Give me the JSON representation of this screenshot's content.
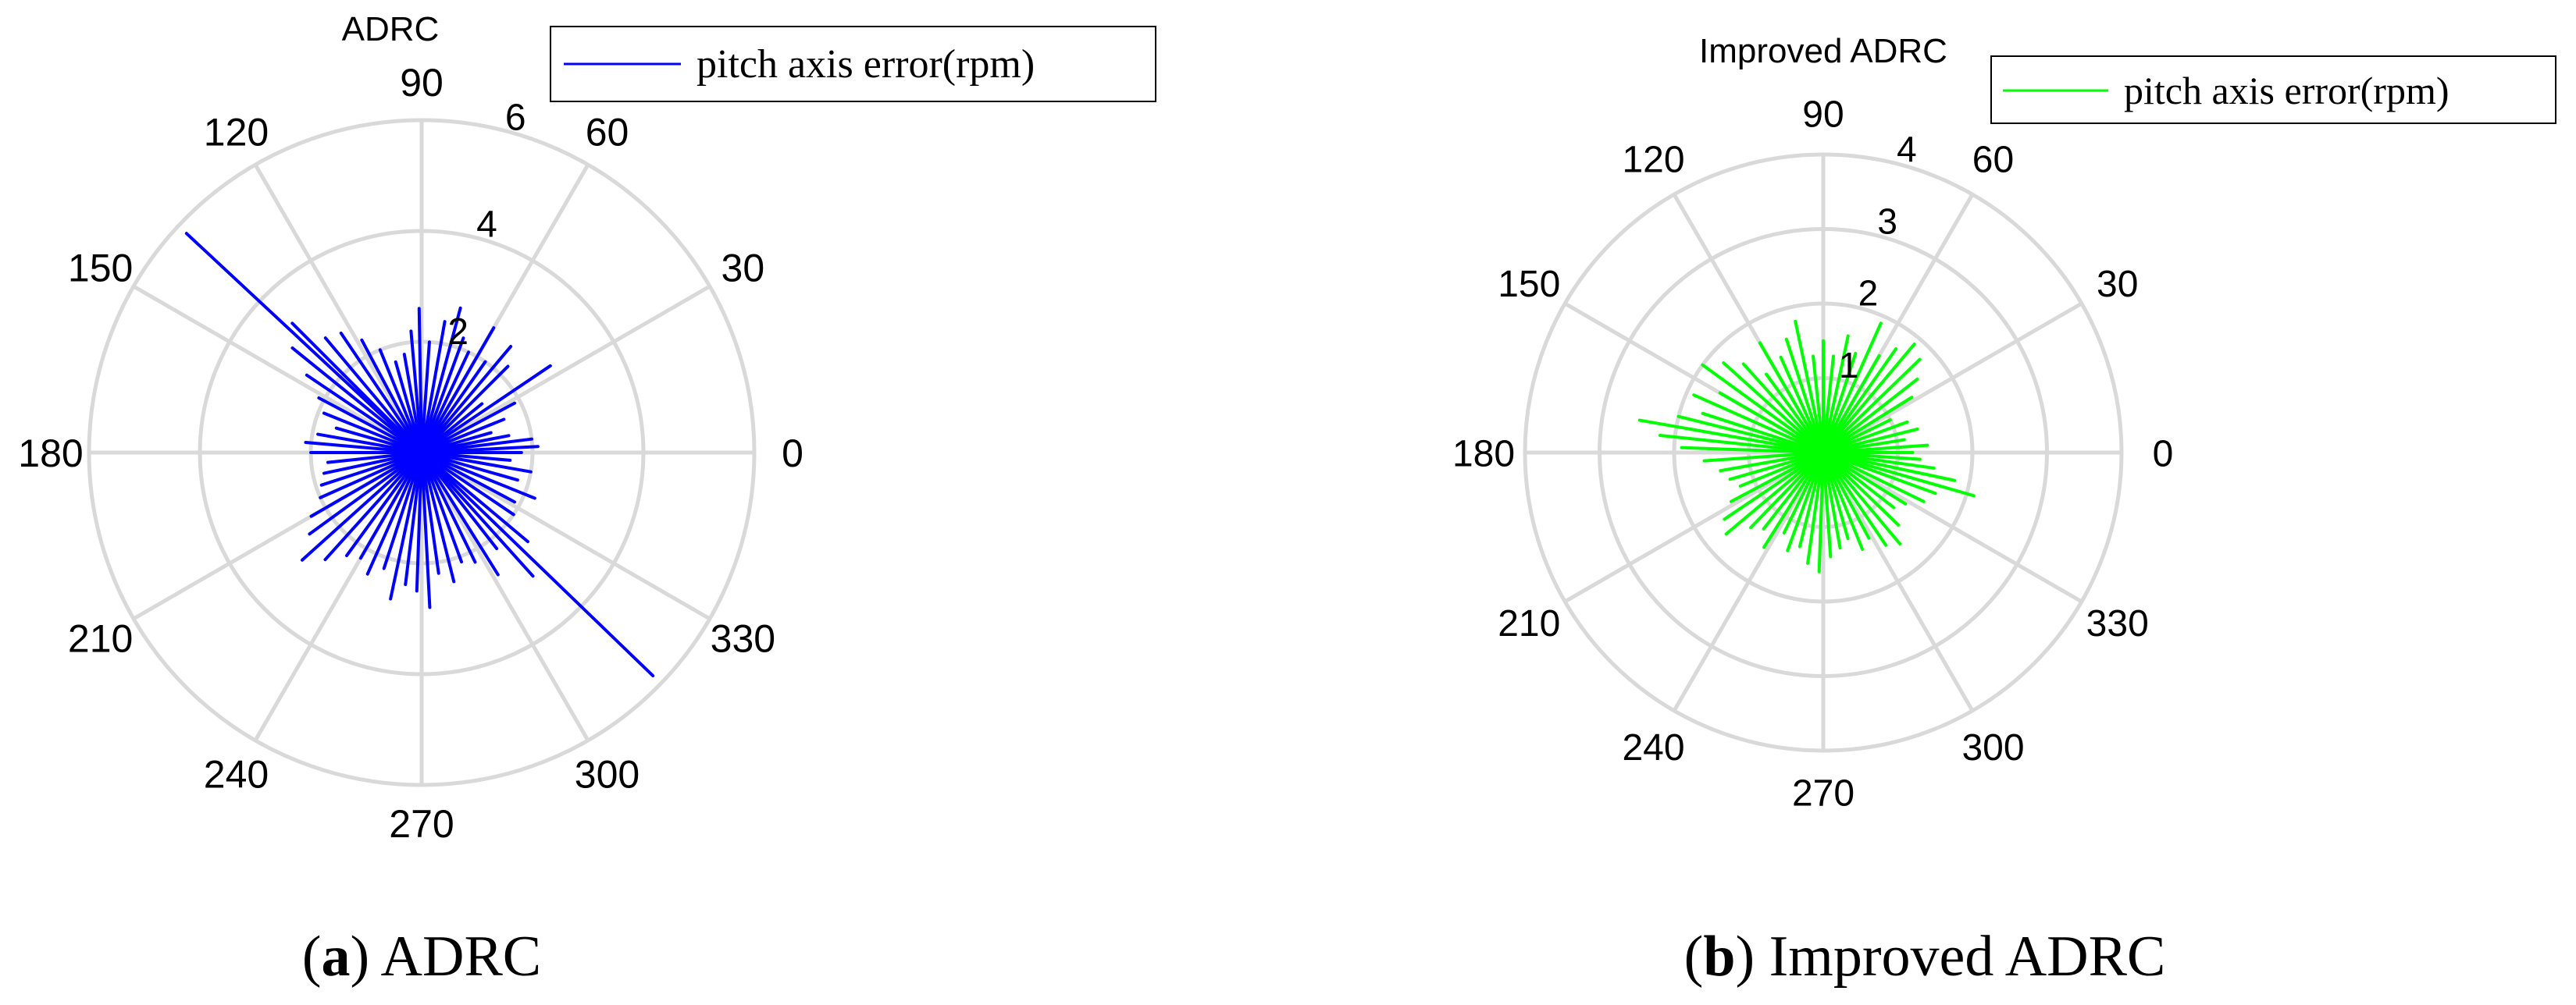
{
  "figure": {
    "panels": [
      {
        "caption_letter": "a",
        "caption_text": " ADRC"
      },
      {
        "caption_letter": "b",
        "caption_text": " Improved ADRC"
      }
    ]
  },
  "chart_data": [
    {
      "type": "polar",
      "title": "ADRC",
      "legend": {
        "label": "pitch axis error(rpm)",
        "position": "top-right",
        "color": "#0000FF"
      },
      "series": [
        {
          "name": "pitch axis error(rpm)",
          "color": "#0000FF",
          "style": "radial-spikes",
          "points": [
            {
              "theta": 0,
              "r": 1.8
            },
            {
              "theta": 3,
              "r": 2.1
            },
            {
              "theta": 7,
              "r": 2.0
            },
            {
              "theta": 11,
              "r": 1.6
            },
            {
              "theta": 16,
              "r": 1.3
            },
            {
              "theta": 22,
              "r": 1.6
            },
            {
              "theta": 28,
              "r": 1.9
            },
            {
              "theta": 34,
              "r": 2.8
            },
            {
              "theta": 39,
              "r": 1.4
            },
            {
              "theta": 45,
              "r": 2.2
            },
            {
              "theta": 50,
              "r": 2.5
            },
            {
              "theta": 55,
              "r": 2.0
            },
            {
              "theta": 60,
              "r": 2.6
            },
            {
              "theta": 65,
              "r": 2.0
            },
            {
              "theta": 70,
              "r": 2.2
            },
            {
              "theta": 75,
              "r": 2.7
            },
            {
              "theta": 80,
              "r": 2.4
            },
            {
              "theta": 86,
              "r": 2.0
            },
            {
              "theta": 91,
              "r": 2.6
            },
            {
              "theta": 95,
              "r": 2.2
            },
            {
              "theta": 100,
              "r": 1.8
            },
            {
              "theta": 106,
              "r": 1.7
            },
            {
              "theta": 112,
              "r": 2.0
            },
            {
              "theta": 118,
              "r": 2.3
            },
            {
              "theta": 124,
              "r": 2.6
            },
            {
              "theta": 130,
              "r": 2.7
            },
            {
              "theta": 135,
              "r": 3.3
            },
            {
              "theta": 137,
              "r": 5.8
            },
            {
              "theta": 141,
              "r": 3.0
            },
            {
              "theta": 146,
              "r": 2.5
            },
            {
              "theta": 152,
              "r": 2.1
            },
            {
              "theta": 158,
              "r": 1.9
            },
            {
              "theta": 164,
              "r": 1.6
            },
            {
              "theta": 170,
              "r": 1.9
            },
            {
              "theta": 175,
              "r": 2.1
            },
            {
              "theta": 180,
              "r": 2.0
            },
            {
              "theta": 186,
              "r": 1.7
            },
            {
              "theta": 192,
              "r": 1.8
            },
            {
              "theta": 198,
              "r": 1.9
            },
            {
              "theta": 204,
              "r": 2.0
            },
            {
              "theta": 210,
              "r": 2.3
            },
            {
              "theta": 216,
              "r": 2.5
            },
            {
              "theta": 222,
              "r": 2.9
            },
            {
              "theta": 228,
              "r": 2.6
            },
            {
              "theta": 234,
              "r": 2.3
            },
            {
              "theta": 240,
              "r": 2.2
            },
            {
              "theta": 246,
              "r": 2.4
            },
            {
              "theta": 252,
              "r": 2.2
            },
            {
              "theta": 258,
              "r": 2.7
            },
            {
              "theta": 263,
              "r": 2.4
            },
            {
              "theta": 268,
              "r": 2.5
            },
            {
              "theta": 273,
              "r": 2.8
            },
            {
              "theta": 278,
              "r": 2.2
            },
            {
              "theta": 284,
              "r": 2.4
            },
            {
              "theta": 290,
              "r": 2.1
            },
            {
              "theta": 296,
              "r": 2.2
            },
            {
              "theta": 302,
              "r": 2.6
            },
            {
              "theta": 308,
              "r": 2.2
            },
            {
              "theta": 312,
              "r": 3.0
            },
            {
              "theta": 316,
              "r": 5.8
            },
            {
              "theta": 320,
              "r": 2.5
            },
            {
              "theta": 326,
              "r": 2.0
            },
            {
              "theta": 332,
              "r": 1.9
            },
            {
              "theta": 338,
              "r": 2.2
            },
            {
              "theta": 344,
              "r": 1.8
            },
            {
              "theta": 350,
              "r": 2.0
            },
            {
              "theta": 355,
              "r": 1.6
            }
          ]
        }
      ],
      "r_axis": {
        "range": [
          0,
          6
        ],
        "rings": [
          2,
          4,
          6
        ],
        "tick_labels": [
          "2",
          "4",
          "6"
        ]
      },
      "theta_axis": {
        "tick_labels": [
          "0",
          "30",
          "60",
          "90",
          "120",
          "150",
          "180",
          "210",
          "240",
          "270",
          "300",
          "330"
        ]
      },
      "grid": true
    },
    {
      "type": "polar",
      "title": "Improved ADRC",
      "legend": {
        "label": "pitch axis error(rpm)",
        "position": "top-right",
        "color": "#00FF00"
      },
      "series": [
        {
          "name": "pitch axis error(rpm)",
          "color": "#00FF00",
          "style": "radial-spikes",
          "points": [
            {
              "theta": 0,
              "r": 1.2
            },
            {
              "theta": 4,
              "r": 1.4
            },
            {
              "theta": 9,
              "r": 1.1
            },
            {
              "theta": 14,
              "r": 1.3
            },
            {
              "theta": 20,
              "r": 1.2
            },
            {
              "theta": 26,
              "r": 1.0
            },
            {
              "theta": 32,
              "r": 1.4
            },
            {
              "theta": 38,
              "r": 1.6
            },
            {
              "theta": 44,
              "r": 1.8
            },
            {
              "theta": 50,
              "r": 1.9
            },
            {
              "theta": 55,
              "r": 1.7
            },
            {
              "theta": 60,
              "r": 1.5
            },
            {
              "theta": 66,
              "r": 1.9
            },
            {
              "theta": 72,
              "r": 1.4
            },
            {
              "theta": 78,
              "r": 1.6
            },
            {
              "theta": 84,
              "r": 1.3
            },
            {
              "theta": 90,
              "r": 1.5
            },
            {
              "theta": 96,
              "r": 1.3
            },
            {
              "theta": 102,
              "r": 1.8
            },
            {
              "theta": 108,
              "r": 1.6
            },
            {
              "theta": 114,
              "r": 1.4
            },
            {
              "theta": 120,
              "r": 1.7
            },
            {
              "theta": 126,
              "r": 1.3
            },
            {
              "theta": 132,
              "r": 1.6
            },
            {
              "theta": 138,
              "r": 1.8
            },
            {
              "theta": 144,
              "r": 2.0
            },
            {
              "theta": 150,
              "r": 1.6
            },
            {
              "theta": 156,
              "r": 1.9
            },
            {
              "theta": 162,
              "r": 1.7
            },
            {
              "theta": 166,
              "r": 2.0
            },
            {
              "theta": 170,
              "r": 2.5
            },
            {
              "theta": 174,
              "r": 2.2
            },
            {
              "theta": 178,
              "r": 1.9
            },
            {
              "theta": 184,
              "r": 1.6
            },
            {
              "theta": 190,
              "r": 1.4
            },
            {
              "theta": 196,
              "r": 1.3
            },
            {
              "theta": 202,
              "r": 1.2
            },
            {
              "theta": 208,
              "r": 1.4
            },
            {
              "theta": 214,
              "r": 1.6
            },
            {
              "theta": 220,
              "r": 1.7
            },
            {
              "theta": 226,
              "r": 1.4
            },
            {
              "theta": 232,
              "r": 1.3
            },
            {
              "theta": 238,
              "r": 1.5
            },
            {
              "theta": 244,
              "r": 1.2
            },
            {
              "theta": 250,
              "r": 1.4
            },
            {
              "theta": 256,
              "r": 1.3
            },
            {
              "theta": 262,
              "r": 1.5
            },
            {
              "theta": 268,
              "r": 1.6
            },
            {
              "theta": 274,
              "r": 1.4
            },
            {
              "theta": 280,
              "r": 1.3
            },
            {
              "theta": 286,
              "r": 1.2
            },
            {
              "theta": 292,
              "r": 1.4
            },
            {
              "theta": 298,
              "r": 1.3
            },
            {
              "theta": 304,
              "r": 1.5
            },
            {
              "theta": 310,
              "r": 1.6
            },
            {
              "theta": 316,
              "r": 1.4
            },
            {
              "theta": 322,
              "r": 1.2
            },
            {
              "theta": 328,
              "r": 1.3
            },
            {
              "theta": 334,
              "r": 1.5
            },
            {
              "theta": 340,
              "r": 1.6
            },
            {
              "theta": 344,
              "r": 2.1
            },
            {
              "theta": 348,
              "r": 1.8
            },
            {
              "theta": 352,
              "r": 1.5
            },
            {
              "theta": 356,
              "r": 1.3
            }
          ]
        }
      ],
      "r_axis": {
        "range": [
          0,
          4
        ],
        "rings": [
          1,
          2,
          3,
          4
        ],
        "tick_labels": [
          "1",
          "2",
          "3",
          "4"
        ]
      },
      "theta_axis": {
        "tick_labels": [
          "0",
          "30",
          "60",
          "90",
          "120",
          "150",
          "180",
          "210",
          "240",
          "270",
          "300",
          "330"
        ]
      },
      "grid": true
    }
  ]
}
